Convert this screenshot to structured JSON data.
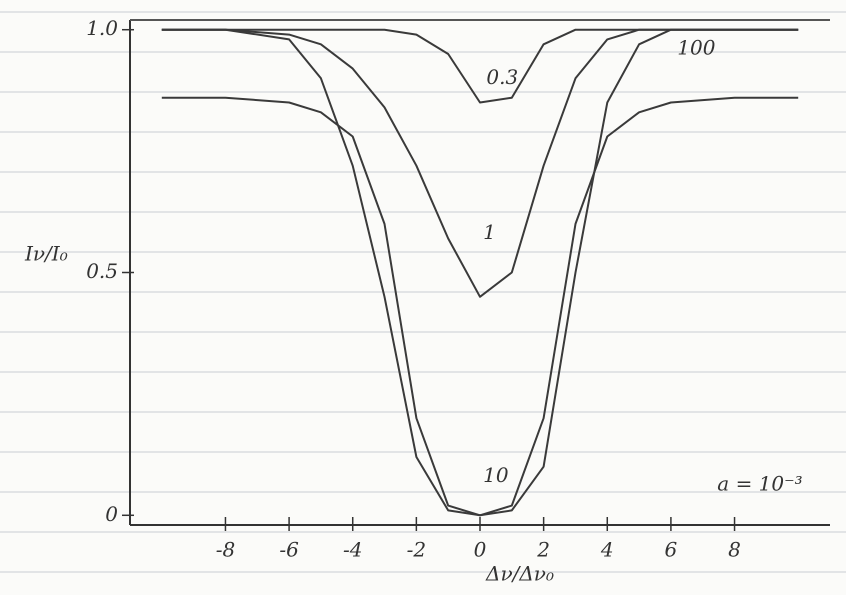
{
  "chart_data": {
    "type": "line",
    "x_label": "Δν/Δν₀",
    "y_label": "Iν/I₀",
    "annotation": "a = 10⁻³",
    "x": [
      -10,
      -8,
      -6,
      -5,
      -4,
      -3,
      -2,
      -1,
      0,
      1,
      2,
      3,
      4,
      5,
      6,
      8,
      10
    ],
    "series": [
      {
        "name": "0.3",
        "color": "#3a3a3a",
        "values": [
          1,
          1,
          1,
          1,
          1,
          1,
          0.99,
          0.95,
          0.85,
          0.86,
          0.97,
          1,
          1,
          1,
          1,
          1,
          1
        ]
      },
      {
        "name": "1",
        "color": "#3a3a3a",
        "values": [
          1,
          1,
          0.99,
          0.97,
          0.92,
          0.84,
          0.72,
          0.57,
          0.45,
          0.5,
          0.72,
          0.9,
          0.98,
          1,
          1,
          1,
          1
        ]
      },
      {
        "name": "10",
        "color": "#3a3a3a",
        "values": [
          1,
          1,
          0.98,
          0.9,
          0.72,
          0.45,
          0.12,
          0.01,
          0,
          0.01,
          0.1,
          0.5,
          0.85,
          0.97,
          1,
          1,
          1
        ]
      },
      {
        "name": "100",
        "color": "#3a3a3a",
        "values": [
          0.86,
          0.86,
          0.85,
          0.83,
          0.78,
          0.6,
          0.2,
          0.02,
          0,
          0.02,
          0.2,
          0.6,
          0.78,
          0.83,
          0.85,
          0.86,
          0.86
        ]
      }
    ],
    "xlim": [
      -11,
      11
    ],
    "xticks": [
      -8,
      -6,
      -4,
      -2,
      0,
      2,
      4,
      6,
      8
    ],
    "ylim": [
      -0.02,
      1.02
    ],
    "yticks": [
      0,
      0.5,
      {
        "value": 1,
        "label": "1.0"
      }
    ]
  }
}
